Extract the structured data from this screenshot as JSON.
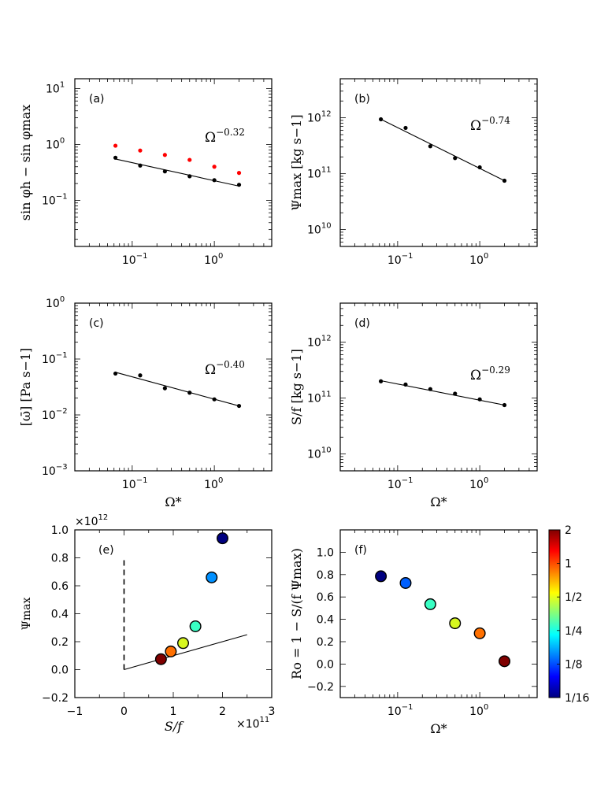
{
  "chart_data": [
    {
      "id": "a",
      "type": "scatter",
      "panel_label": "(a)",
      "ylabel": "sin φh − sin φmax",
      "xlabel": "",
      "xscale": "log",
      "yscale": "log",
      "xlim": [
        0.02,
        5
      ],
      "ylim": [
        0.015,
        15
      ],
      "x_ticks": [
        {
          "v": 0.1,
          "label": "10",
          "exp": "−1"
        },
        {
          "v": 1,
          "label": "10",
          "exp": "0"
        }
      ],
      "y_ticks": [
        {
          "v": 0.1,
          "label": "10",
          "exp": "−1"
        },
        {
          "v": 1,
          "label": "10",
          "exp": "0"
        },
        {
          "v": 10,
          "label": "10",
          "exp": "1"
        }
      ],
      "annotation": {
        "base": "Ω",
        "exp": "−0.32"
      },
      "series": [
        {
          "name": "red",
          "color": "#ff0000",
          "x": [
            0.0625,
            0.125,
            0.25,
            0.5,
            1,
            2
          ],
          "y": [
            0.95,
            0.78,
            0.65,
            0.53,
            0.4,
            0.31
          ]
        },
        {
          "name": "black",
          "color": "#000000",
          "x": [
            0.0625,
            0.125,
            0.25,
            0.5,
            1,
            2
          ],
          "y": [
            0.58,
            0.42,
            0.33,
            0.27,
            0.23,
            0.19
          ]
        }
      ],
      "fit": {
        "x": [
          0.0625,
          2
        ],
        "y": [
          0.55,
          0.18
        ]
      }
    },
    {
      "id": "b",
      "type": "scatter",
      "panel_label": "(b)",
      "ylabel": "Ψmax [kg s−1]",
      "xlabel": "",
      "xscale": "log",
      "yscale": "log",
      "xlim": [
        0.02,
        5
      ],
      "ylim": [
        5000000000.0,
        5000000000000.0
      ],
      "x_ticks": [
        {
          "v": 0.1,
          "label": "10",
          "exp": "−1"
        },
        {
          "v": 1,
          "label": "10",
          "exp": "0"
        }
      ],
      "y_ticks": [
        {
          "v": 10000000000.0,
          "label": "10",
          "exp": "10"
        },
        {
          "v": 100000000000.0,
          "label": "10",
          "exp": "11"
        },
        {
          "v": 1000000000000.0,
          "label": "10",
          "exp": "12"
        }
      ],
      "annotation": {
        "base": "Ω",
        "exp": "−0.74"
      },
      "series": [
        {
          "name": "black",
          "color": "#000000",
          "x": [
            0.0625,
            0.125,
            0.25,
            0.5,
            1,
            2
          ],
          "y": [
            940000000000.0,
            660000000000.0,
            310000000000.0,
            190000000000.0,
            130000000000.0,
            75000000000.0
          ]
        }
      ],
      "fit": {
        "x": [
          0.0625,
          2
        ],
        "y": [
          940000000000.0,
          75000000000.0
        ]
      }
    },
    {
      "id": "c",
      "type": "scatter",
      "panel_label": "(c)",
      "ylabel": "[ω̄] [Pa s−1]",
      "xlabel": "Ω*",
      "xscale": "log",
      "yscale": "log",
      "xlim": [
        0.02,
        5
      ],
      "ylim": [
        0.001,
        1
      ],
      "x_ticks": [
        {
          "v": 0.1,
          "label": "10",
          "exp": "−1"
        },
        {
          "v": 1,
          "label": "10",
          "exp": "0"
        }
      ],
      "y_ticks": [
        {
          "v": 0.001,
          "label": "10",
          "exp": "−3"
        },
        {
          "v": 0.01,
          "label": "10",
          "exp": "−2"
        },
        {
          "v": 0.1,
          "label": "10",
          "exp": "−1"
        },
        {
          "v": 1,
          "label": "10",
          "exp": "0"
        }
      ],
      "annotation": {
        "base": "Ω",
        "exp": "−0.40"
      },
      "series": [
        {
          "name": "black",
          "color": "#000000",
          "x": [
            0.0625,
            0.125,
            0.25,
            0.5,
            1,
            2
          ],
          "y": [
            0.055,
            0.051,
            0.03,
            0.025,
            0.019,
            0.0145
          ]
        }
      ],
      "fit": {
        "x": [
          0.0625,
          2
        ],
        "y": [
          0.058,
          0.0145
        ]
      }
    },
    {
      "id": "d",
      "type": "scatter",
      "panel_label": "(d)",
      "ylabel": "S/f [kg s−1]",
      "xlabel": "Ω*",
      "xscale": "log",
      "yscale": "log",
      "xlim": [
        0.02,
        5
      ],
      "ylim": [
        5000000000.0,
        5000000000000.0
      ],
      "x_ticks": [
        {
          "v": 0.1,
          "label": "10",
          "exp": "−1"
        },
        {
          "v": 1,
          "label": "10",
          "exp": "0"
        }
      ],
      "y_ticks": [
        {
          "v": 10000000000.0,
          "label": "10",
          "exp": "10"
        },
        {
          "v": 100000000000.0,
          "label": "10",
          "exp": "11"
        },
        {
          "v": 1000000000000.0,
          "label": "10",
          "exp": "12"
        }
      ],
      "annotation": {
        "base": "Ω",
        "exp": "−0.29"
      },
      "series": [
        {
          "name": "black",
          "color": "#000000",
          "x": [
            0.0625,
            0.125,
            0.25,
            0.5,
            1,
            2
          ],
          "y": [
            200000000000.0,
            175000000000.0,
            145000000000.0,
            120000000000.0,
            95000000000.0,
            75000000000.0
          ]
        }
      ],
      "fit": {
        "x": [
          0.0625,
          2
        ],
        "y": [
          205000000000.0,
          75000000000.0
        ]
      }
    },
    {
      "id": "e",
      "type": "scatter",
      "panel_label": "(e)",
      "ylabel": "Ψmax",
      "xlabel": "S/f",
      "xscale": "linear",
      "yscale": "linear",
      "xlim": [
        -1,
        3
      ],
      "ylim": [
        -0.2,
        1.0
      ],
      "x_ticks": [
        {
          "v": -1,
          "label": "−1"
        },
        {
          "v": 0,
          "label": "0"
        },
        {
          "v": 1,
          "label": "1"
        },
        {
          "v": 2,
          "label": "2"
        },
        {
          "v": 3,
          "label": "3"
        }
      ],
      "y_ticks": [
        {
          "v": -0.2,
          "label": "−0.2"
        },
        {
          "v": 0,
          "label": "0.0"
        },
        {
          "v": 0.2,
          "label": "0.2"
        },
        {
          "v": 0.4,
          "label": "0.4"
        },
        {
          "v": 0.6,
          "label": "0.6"
        },
        {
          "v": 0.8,
          "label": "0.8"
        },
        {
          "v": 1.0,
          "label": "1.0"
        }
      ],
      "x_offset": {
        "base": "×10",
        "exp": "11"
      },
      "y_offset": {
        "base": "×10",
        "exp": "12"
      },
      "points": [
        {
          "x": 0.75,
          "y": 0.075,
          "color": "#7f0000"
        },
        {
          "x": 0.95,
          "y": 0.13,
          "color": "#ff7000"
        },
        {
          "x": 1.2,
          "y": 0.19,
          "color": "#d7f71f"
        },
        {
          "x": 1.45,
          "y": 0.31,
          "color": "#39ffc4"
        },
        {
          "x": 1.78,
          "y": 0.66,
          "color": "#0090ff"
        },
        {
          "x": 2.0,
          "y": 0.94,
          "color": "#000080"
        }
      ],
      "line": {
        "x": [
          0,
          2.5
        ],
        "y": [
          0,
          0.25
        ]
      },
      "dashed": {
        "x": [
          0,
          0
        ],
        "y": [
          0,
          0.8
        ]
      }
    },
    {
      "id": "f",
      "type": "scatter",
      "panel_label": "(f)",
      "ylabel": "Ro = 1 − S/(f Ψmax)",
      "xlabel": "Ω*",
      "xscale": "log",
      "yscale": "linear",
      "xlim": [
        0.02,
        5
      ],
      "ylim": [
        -0.3,
        1.2
      ],
      "x_ticks": [
        {
          "v": 0.1,
          "label": "10",
          "exp": "−1"
        },
        {
          "v": 1,
          "label": "10",
          "exp": "0"
        }
      ],
      "y_ticks": [
        {
          "v": -0.2,
          "label": "−0.2"
        },
        {
          "v": 0,
          "label": "0.0"
        },
        {
          "v": 0.2,
          "label": "0.2"
        },
        {
          "v": 0.4,
          "label": "0.4"
        },
        {
          "v": 0.6,
          "label": "0.6"
        },
        {
          "v": 0.8,
          "label": "0.8"
        },
        {
          "v": 1.0,
          "label": "1.0"
        }
      ],
      "points": [
        {
          "x": 0.0625,
          "y": 0.785,
          "color": "#000080"
        },
        {
          "x": 0.125,
          "y": 0.725,
          "color": "#0060ff"
        },
        {
          "x": 0.25,
          "y": 0.535,
          "color": "#39ffc4"
        },
        {
          "x": 0.5,
          "y": 0.365,
          "color": "#d7f71f"
        },
        {
          "x": 1,
          "y": 0.275,
          "color": "#ff7000"
        },
        {
          "x": 2,
          "y": 0.025,
          "color": "#7f0000"
        }
      ]
    }
  ],
  "colorbar": {
    "labels": [
      "2",
      "1",
      "1/2",
      "1/4",
      "1/8",
      "1/16"
    ],
    "stops": [
      "#000080",
      "#0000ff",
      "#0080ff",
      "#00ffff",
      "#80ff80",
      "#ffff00",
      "#ff8000",
      "#ff0000",
      "#800000"
    ]
  }
}
